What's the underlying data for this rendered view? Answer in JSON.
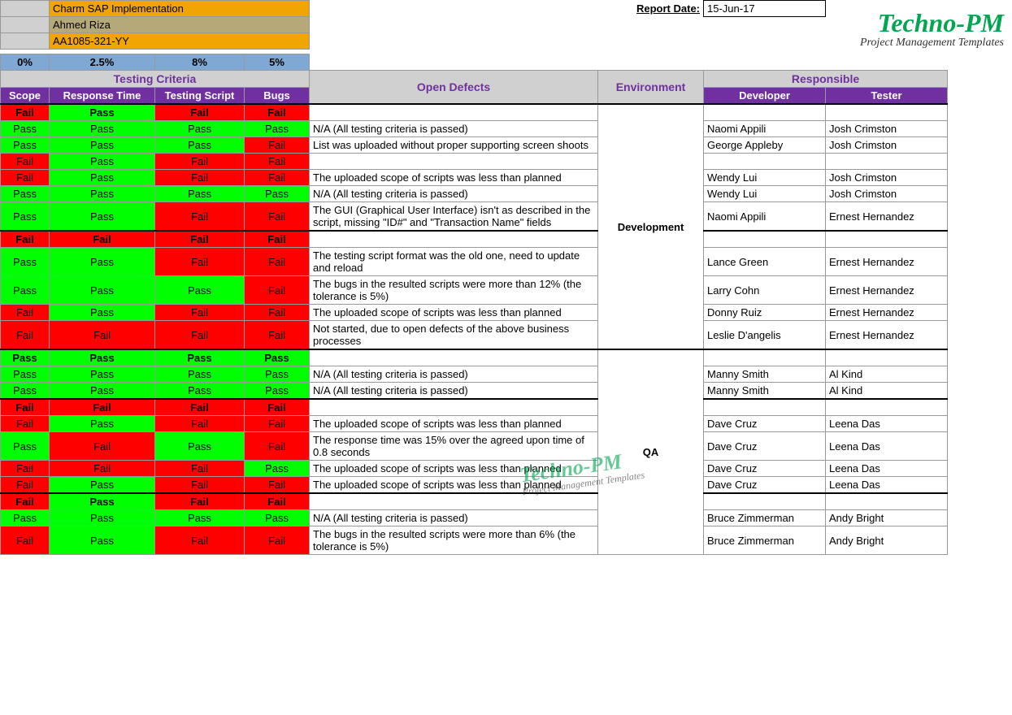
{
  "brand": {
    "name": "Techno-PM",
    "tagline": "Project Management Templates",
    "color": "#00a651"
  },
  "report": {
    "project": "Charm SAP Implementation",
    "owner": "Ahmed Riza",
    "code": "AA1085-321-YY",
    "date_label": "Report Date:",
    "date_value": "15-Jun-17"
  },
  "percent_row": [
    "0%",
    "2.5%",
    "8%",
    "5%"
  ],
  "sections": {
    "criteria": "Testing Criteria",
    "defects": "Open Defects",
    "env": "Environment",
    "resp": "Responsible"
  },
  "columns": {
    "scope": "Scope",
    "rt": "Response Time",
    "script": "Testing Script",
    "bugs": "Bugs",
    "dev": "Developer",
    "tester": "Tester"
  },
  "colors": {
    "pass": "#00ff00",
    "fail": "#ff0000",
    "header_purple": "#7030a0",
    "header_text": "#ffffff",
    "section_grey": "#d0d0d0",
    "section_text": "#7030a0",
    "pct_blue": "#7fa9d4",
    "info_orange": "#f0a500",
    "info_khaki": "#b5a97a"
  },
  "col_widths": {
    "scope": 60,
    "rt": 130,
    "script": 110,
    "bugs": 80,
    "defects": 355,
    "env": 130,
    "dev": 150,
    "tester": 150
  },
  "labels": {
    "pass": "Pass",
    "fail": "Fail"
  },
  "groups": [
    {
      "env": "Development",
      "header": {
        "bold": true,
        "cells": [
          "Fail",
          "Pass",
          "Fail",
          "Fail"
        ],
        "defect": "",
        "dev": "",
        "tester": ""
      },
      "rows": [
        {
          "cells": [
            "Pass",
            "Pass",
            "Pass",
            "Pass"
          ],
          "defect": "N/A (All testing criteria is passed)",
          "dev": "Naomi Appili",
          "tester": "Josh Crimston"
        },
        {
          "cells": [
            "Pass",
            "Pass",
            "Pass",
            "Fail"
          ],
          "defect": "List was uploaded without proper supporting screen shoots",
          "dev": "George Appleby",
          "tester": "Josh Crimston"
        },
        {
          "cells": [
            "Fail",
            "Pass",
            "Fail",
            "Fail"
          ],
          "defect": "",
          "dev": "",
          "tester": ""
        },
        {
          "cells": [
            "Fail",
            "Pass",
            "Fail",
            "Fail"
          ],
          "defect": "The uploaded scope of scripts was less than planned",
          "dev": "Wendy Lui",
          "tester": "Josh Crimston"
        },
        {
          "cells": [
            "Pass",
            "Pass",
            "Pass",
            "Pass"
          ],
          "defect": "N/A (All testing criteria is passed)",
          "dev": "Wendy Lui",
          "tester": "Josh Crimston"
        },
        {
          "cells": [
            "Pass",
            "Pass",
            "Fail",
            "Fail"
          ],
          "defect": "The GUI (Graphical User Interface) isn't as described in the script, missing \"ID#\" and \"Transaction Name\" fields",
          "dev": "Naomi Appili",
          "tester": "Ernest Hernandez"
        }
      ],
      "header2": {
        "bold": true,
        "cells": [
          "Fail",
          "Fail",
          "Fail",
          "Fail"
        ],
        "defect": "",
        "dev": "",
        "tester": ""
      },
      "rows2": [
        {
          "cells": [
            "Pass",
            "Pass",
            "Fail",
            "Fail"
          ],
          "defect": "The testing script format was the old one, need to update and reload",
          "dev": "Lance Green",
          "tester": "Ernest Hernandez"
        },
        {
          "cells": [
            "Pass",
            "Pass",
            "Pass",
            "Fail"
          ],
          "defect": "The bugs in the resulted scripts were more than 12% (the tolerance is 5%)",
          "dev": "Larry Cohn",
          "tester": "Ernest Hernandez"
        },
        {
          "cells": [
            "Fail",
            "Pass",
            "Fail",
            "Fail"
          ],
          "defect": "The uploaded scope of scripts was less than planned",
          "dev": "Donny Ruiz",
          "tester": "Ernest Hernandez"
        },
        {
          "cells": [
            "Fail",
            "Fail",
            "Fail",
            "Fail"
          ],
          "defect": "Not started, due to open defects of the above business processes",
          "dev": "Leslie D'angelis",
          "tester": "Ernest Hernandez"
        }
      ]
    },
    {
      "env": "QA",
      "header": {
        "bold": true,
        "cells": [
          "Pass",
          "Pass",
          "Pass",
          "Pass"
        ],
        "defect": "",
        "dev": "",
        "tester": ""
      },
      "rows": [
        {
          "cells": [
            "Pass",
            "Pass",
            "Pass",
            "Pass"
          ],
          "defect": "N/A (All testing criteria is passed)",
          "dev": "Manny Smith",
          "tester": "Al Kind"
        },
        {
          "cells": [
            "Pass",
            "Pass",
            "Pass",
            "Pass"
          ],
          "defect": "N/A (All testing criteria is passed)",
          "dev": "Manny Smith",
          "tester": "Al Kind"
        }
      ],
      "header2": {
        "bold": true,
        "cells": [
          "Fail",
          "Fail",
          "Fail",
          "Fail"
        ],
        "defect": "",
        "dev": "",
        "tester": ""
      },
      "rows2": [
        {
          "cells": [
            "Fail",
            "Pass",
            "Fail",
            "Fail"
          ],
          "defect": "The uploaded scope of scripts was less than planned",
          "dev": "Dave Cruz",
          "tester": "Leena Das"
        },
        {
          "cells": [
            "Pass",
            "Fail",
            "Pass",
            "Fail"
          ],
          "defect": "The response time was 15% over the agreed upon time of 0.8 seconds",
          "dev": "Dave Cruz",
          "tester": "Leena Das"
        },
        {
          "cells": [
            "Fail",
            "Fail",
            "Fail",
            "Pass"
          ],
          "defect": "The uploaded scope of scripts was less than planned",
          "dev": "Dave Cruz",
          "tester": "Leena Das"
        },
        {
          "cells": [
            "Fail",
            "Pass",
            "Fail",
            "Fail"
          ],
          "defect": "The uploaded scope of scripts was less than planned",
          "dev": "Dave Cruz",
          "tester": "Leena Das"
        }
      ],
      "header3": {
        "bold": true,
        "cells": [
          "Fail",
          "Pass",
          "Fail",
          "Fail"
        ],
        "defect": "",
        "dev": "",
        "tester": ""
      },
      "rows3": [
        {
          "cells": [
            "Pass",
            "Pass",
            "Pass",
            "Pass"
          ],
          "defect": "N/A (All testing criteria is passed)",
          "dev": "Bruce Zimmerman",
          "tester": "Andy Bright"
        },
        {
          "cells": [
            "Fail",
            "Pass",
            "Fail",
            "Fail"
          ],
          "defect": "The bugs in the resulted scripts were more than 6% (the tolerance is 5%)",
          "dev": "Bruce Zimmerman",
          "tester": "Andy Bright"
        }
      ]
    }
  ]
}
